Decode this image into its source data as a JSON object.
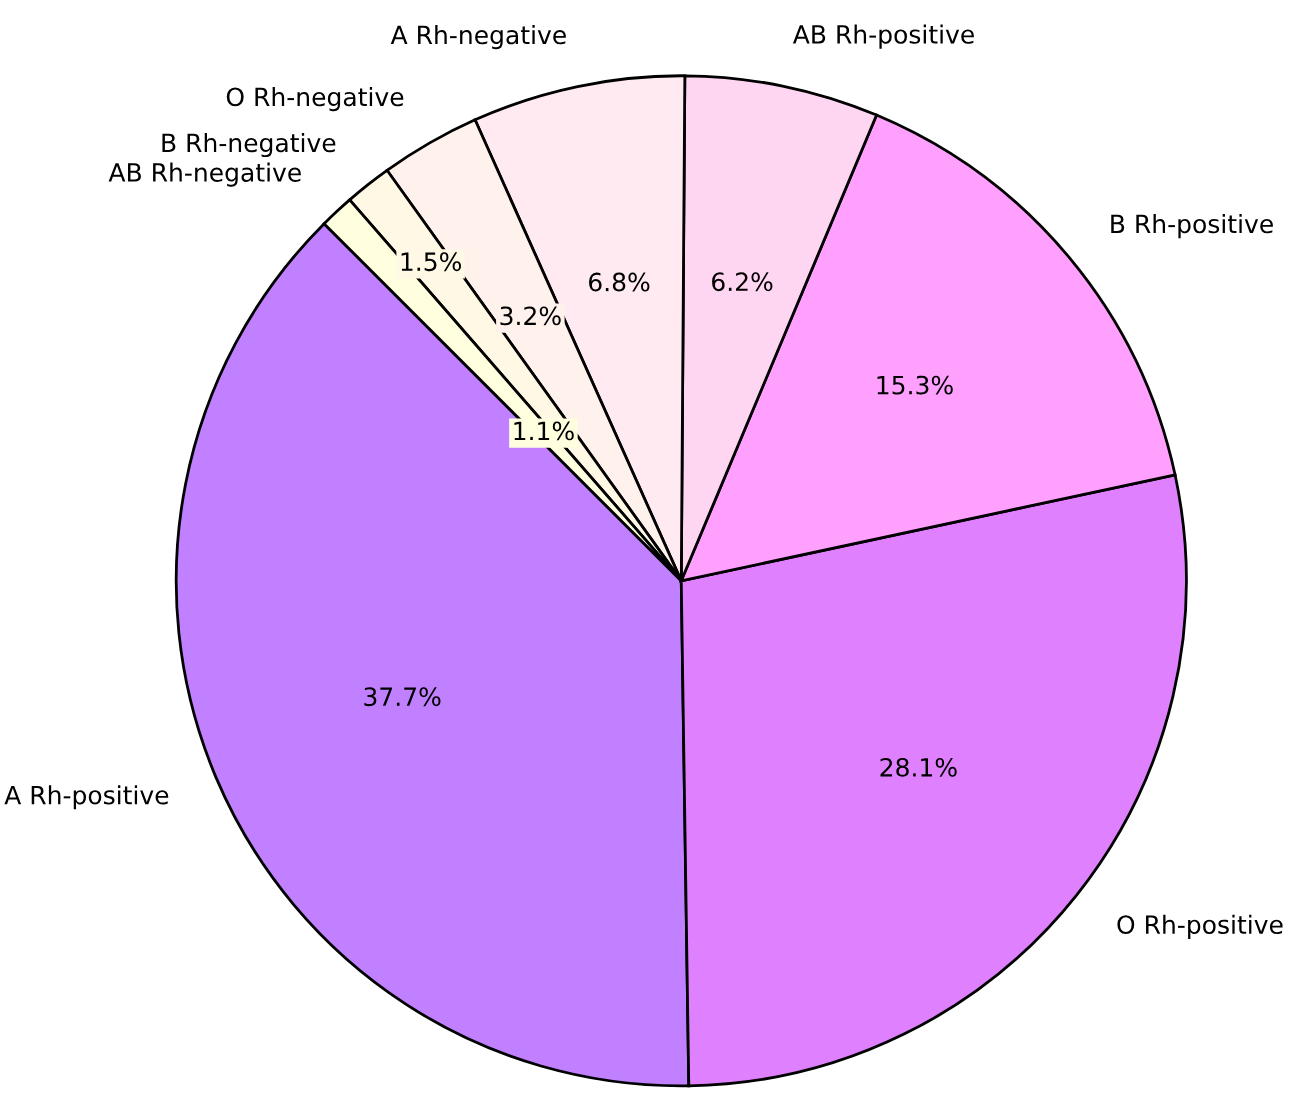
{
  "chart_data": {
    "type": "pie",
    "categories": [
      "A Rh-positive",
      "O Rh-positive",
      "B Rh-positive",
      "AB Rh-positive",
      "A Rh-negative",
      "O Rh-negative",
      "B Rh-negative",
      "AB Rh-negative"
    ],
    "values": [
      37.7,
      28.1,
      15.3,
      6.2,
      6.8,
      3.2,
      1.5,
      1.1
    ],
    "colors": [
      "#c080ff",
      "#df80ff",
      "#ffa0ff",
      "#ffd6f2",
      "#ffeaf2",
      "#fff2ec",
      "#fff8e4",
      "#ffffe0"
    ],
    "value_labels": [
      "37.7%",
      "28.1%",
      "15.3%",
      "6.2%",
      "6.8%",
      "3.2%",
      "1.5%",
      "1.1%"
    ]
  }
}
